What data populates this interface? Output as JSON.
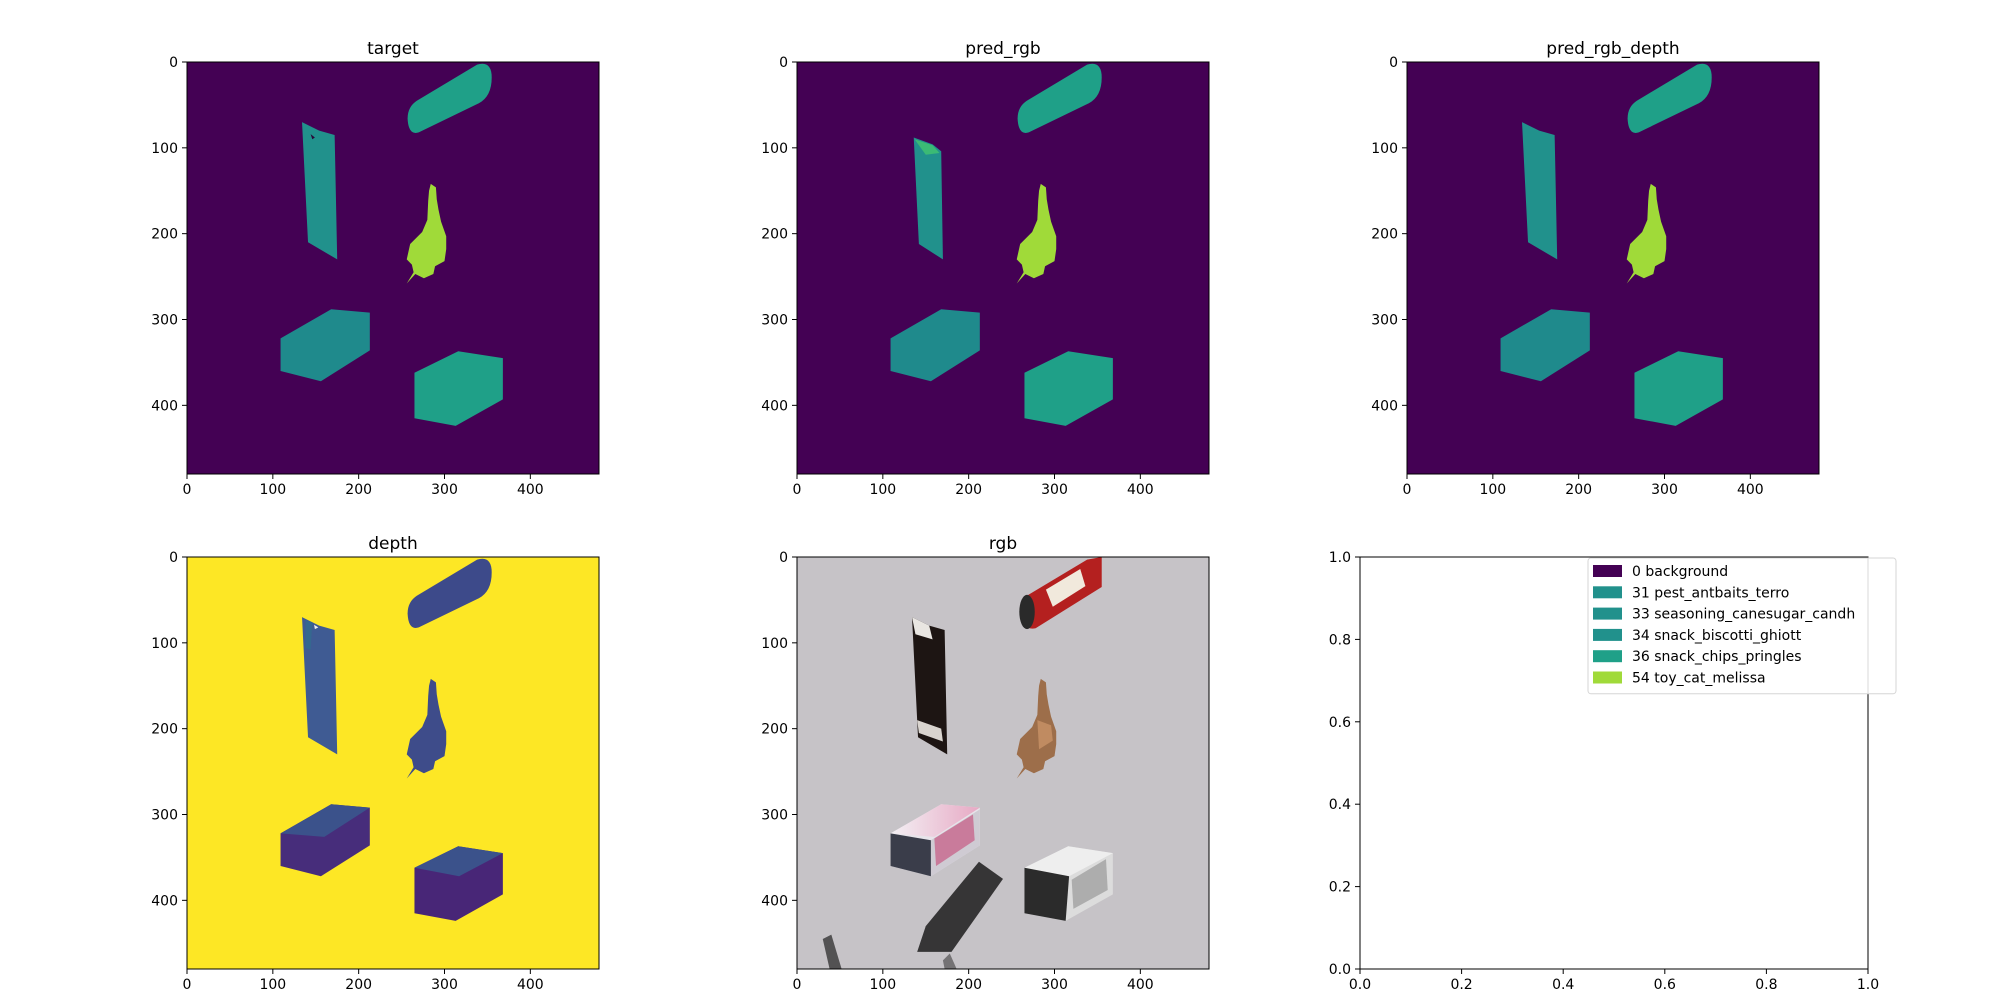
{
  "figure": {
    "panels": [
      {
        "title": "target"
      },
      {
        "title": "pred_rgb"
      },
      {
        "title": "pred_rgb_depth"
      },
      {
        "title": "depth"
      },
      {
        "title": "rgb"
      },
      {
        "title": ""
      }
    ]
  },
  "colors": {
    "background_class": "#440154",
    "teal": "#21918c",
    "teal_dark": "#1f8a8c",
    "teal_light": "#1fa088",
    "green": "#a0da39",
    "depth_far": "#fde725",
    "depth_near_a": "#3b528b",
    "depth_near_b": "#440e5e",
    "rgb_floor": "#c6c3c7"
  },
  "chart_data": [
    {
      "type": "heatmap",
      "title": "target",
      "xlim": [
        0,
        480
      ],
      "ylim": [
        480,
        0
      ],
      "xticks": [
        0,
        100,
        200,
        300,
        400
      ],
      "yticks": [
        0,
        100,
        200,
        300,
        400
      ],
      "class_image": "segmentation mask"
    },
    {
      "type": "heatmap",
      "title": "pred_rgb",
      "xlim": [
        0,
        480
      ],
      "ylim": [
        480,
        0
      ],
      "xticks": [
        0,
        100,
        200,
        300,
        400
      ],
      "yticks": [
        0,
        100,
        200,
        300,
        400
      ],
      "class_image": "segmentation mask"
    },
    {
      "type": "heatmap",
      "title": "pred_rgb_depth",
      "xlim": [
        0,
        480
      ],
      "ylim": [
        480,
        0
      ],
      "xticks": [
        0,
        100,
        200,
        300,
        400
      ],
      "yticks": [
        0,
        100,
        200,
        300,
        400
      ],
      "class_image": "segmentation mask"
    },
    {
      "type": "heatmap",
      "title": "depth",
      "xlim": [
        0,
        480
      ],
      "ylim": [
        480,
        0
      ],
      "xticks": [
        0,
        100,
        200,
        300,
        400
      ],
      "yticks": [
        0,
        100,
        200,
        300,
        400
      ],
      "class_image": "depth map"
    },
    {
      "type": "heatmap",
      "title": "rgb",
      "xlim": [
        0,
        480
      ],
      "ylim": [
        480,
        0
      ],
      "xticks": [
        0,
        100,
        200,
        300,
        400
      ],
      "yticks": [
        0,
        100,
        200,
        300,
        400
      ],
      "class_image": "photo"
    },
    {
      "type": "scatter",
      "title": "",
      "xlim": [
        0,
        1
      ],
      "ylim": [
        0,
        1
      ],
      "xticks": [
        "0.0",
        "0.2",
        "0.4",
        "0.6",
        "0.8",
        "1.0"
      ],
      "yticks": [
        "0.0",
        "0.2",
        "0.4",
        "0.6",
        "0.8",
        "1.0"
      ],
      "legend": {
        "placement": "top-right",
        "entries": [
          {
            "label": "0 background",
            "color": "#440154"
          },
          {
            "label": "31 pest_antbaits_terro",
            "color": "#21918c"
          },
          {
            "label": "33 seasoning_canesugar_candh",
            "color": "#21918c"
          },
          {
            "label": "34 snack_biscotti_ghiott",
            "color": "#21918c"
          },
          {
            "label": "36 snack_chips_pringles",
            "color": "#1fa088"
          },
          {
            "label": "54 toy_cat_melissa",
            "color": "#a0da39"
          }
        ]
      }
    }
  ]
}
